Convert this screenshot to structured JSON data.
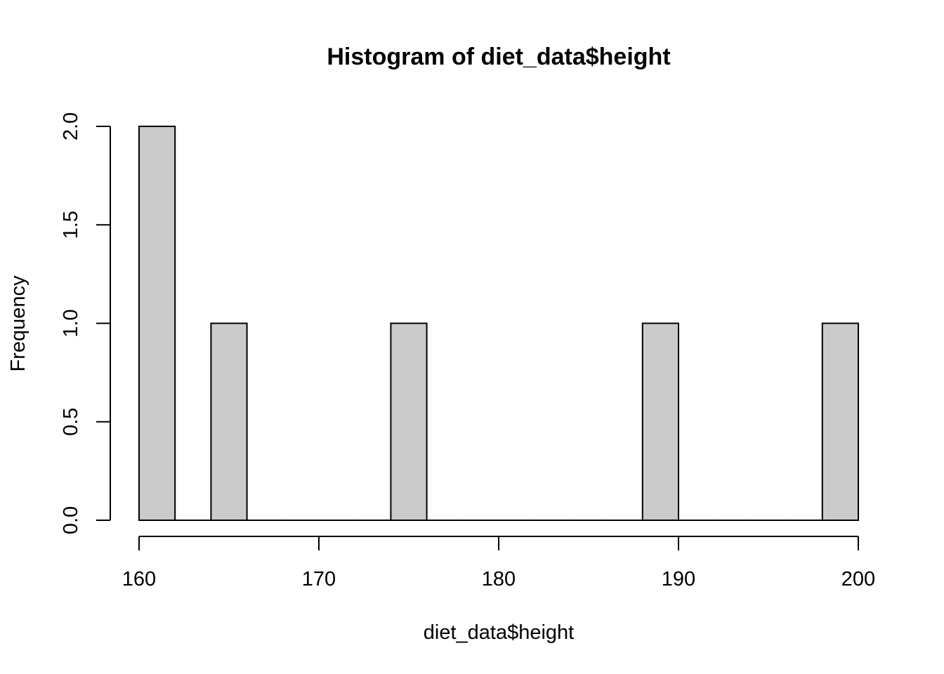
{
  "chart_data": {
    "type": "bar",
    "title": "Histogram of diet_data$height",
    "xlabel": "diet_data$height",
    "ylabel": "Frequency",
    "bins": [
      {
        "x0": 160,
        "x1": 162,
        "count": 2
      },
      {
        "x0": 162,
        "x1": 164,
        "count": 0
      },
      {
        "x0": 164,
        "x1": 166,
        "count": 1
      },
      {
        "x0": 166,
        "x1": 168,
        "count": 0
      },
      {
        "x0": 168,
        "x1": 170,
        "count": 0
      },
      {
        "x0": 170,
        "x1": 172,
        "count": 0
      },
      {
        "x0": 172,
        "x1": 174,
        "count": 0
      },
      {
        "x0": 174,
        "x1": 176,
        "count": 1
      },
      {
        "x0": 176,
        "x1": 178,
        "count": 0
      },
      {
        "x0": 178,
        "x1": 180,
        "count": 0
      },
      {
        "x0": 180,
        "x1": 182,
        "count": 0
      },
      {
        "x0": 182,
        "x1": 184,
        "count": 0
      },
      {
        "x0": 184,
        "x1": 186,
        "count": 0
      },
      {
        "x0": 186,
        "x1": 188,
        "count": 0
      },
      {
        "x0": 188,
        "x1": 190,
        "count": 1
      },
      {
        "x0": 190,
        "x1": 192,
        "count": 0
      },
      {
        "x0": 192,
        "x1": 194,
        "count": 0
      },
      {
        "x0": 194,
        "x1": 196,
        "count": 0
      },
      {
        "x0": 196,
        "x1": 198,
        "count": 0
      },
      {
        "x0": 198,
        "x1": 200,
        "count": 1
      }
    ],
    "xlim": [
      160,
      200
    ],
    "ylim": [
      0,
      2
    ],
    "x_ticks": [
      160,
      170,
      180,
      190,
      200
    ],
    "x_tick_labels": [
      "160",
      "170",
      "180",
      "190",
      "200"
    ],
    "y_ticks": [
      0,
      0.5,
      1,
      1.5,
      2
    ],
    "y_tick_labels": [
      "0.0",
      "0.5",
      "1.0",
      "1.5",
      "2.0"
    ],
    "grid": false,
    "bar_color": "#cbcbcb",
    "edge_color": "#000000"
  }
}
